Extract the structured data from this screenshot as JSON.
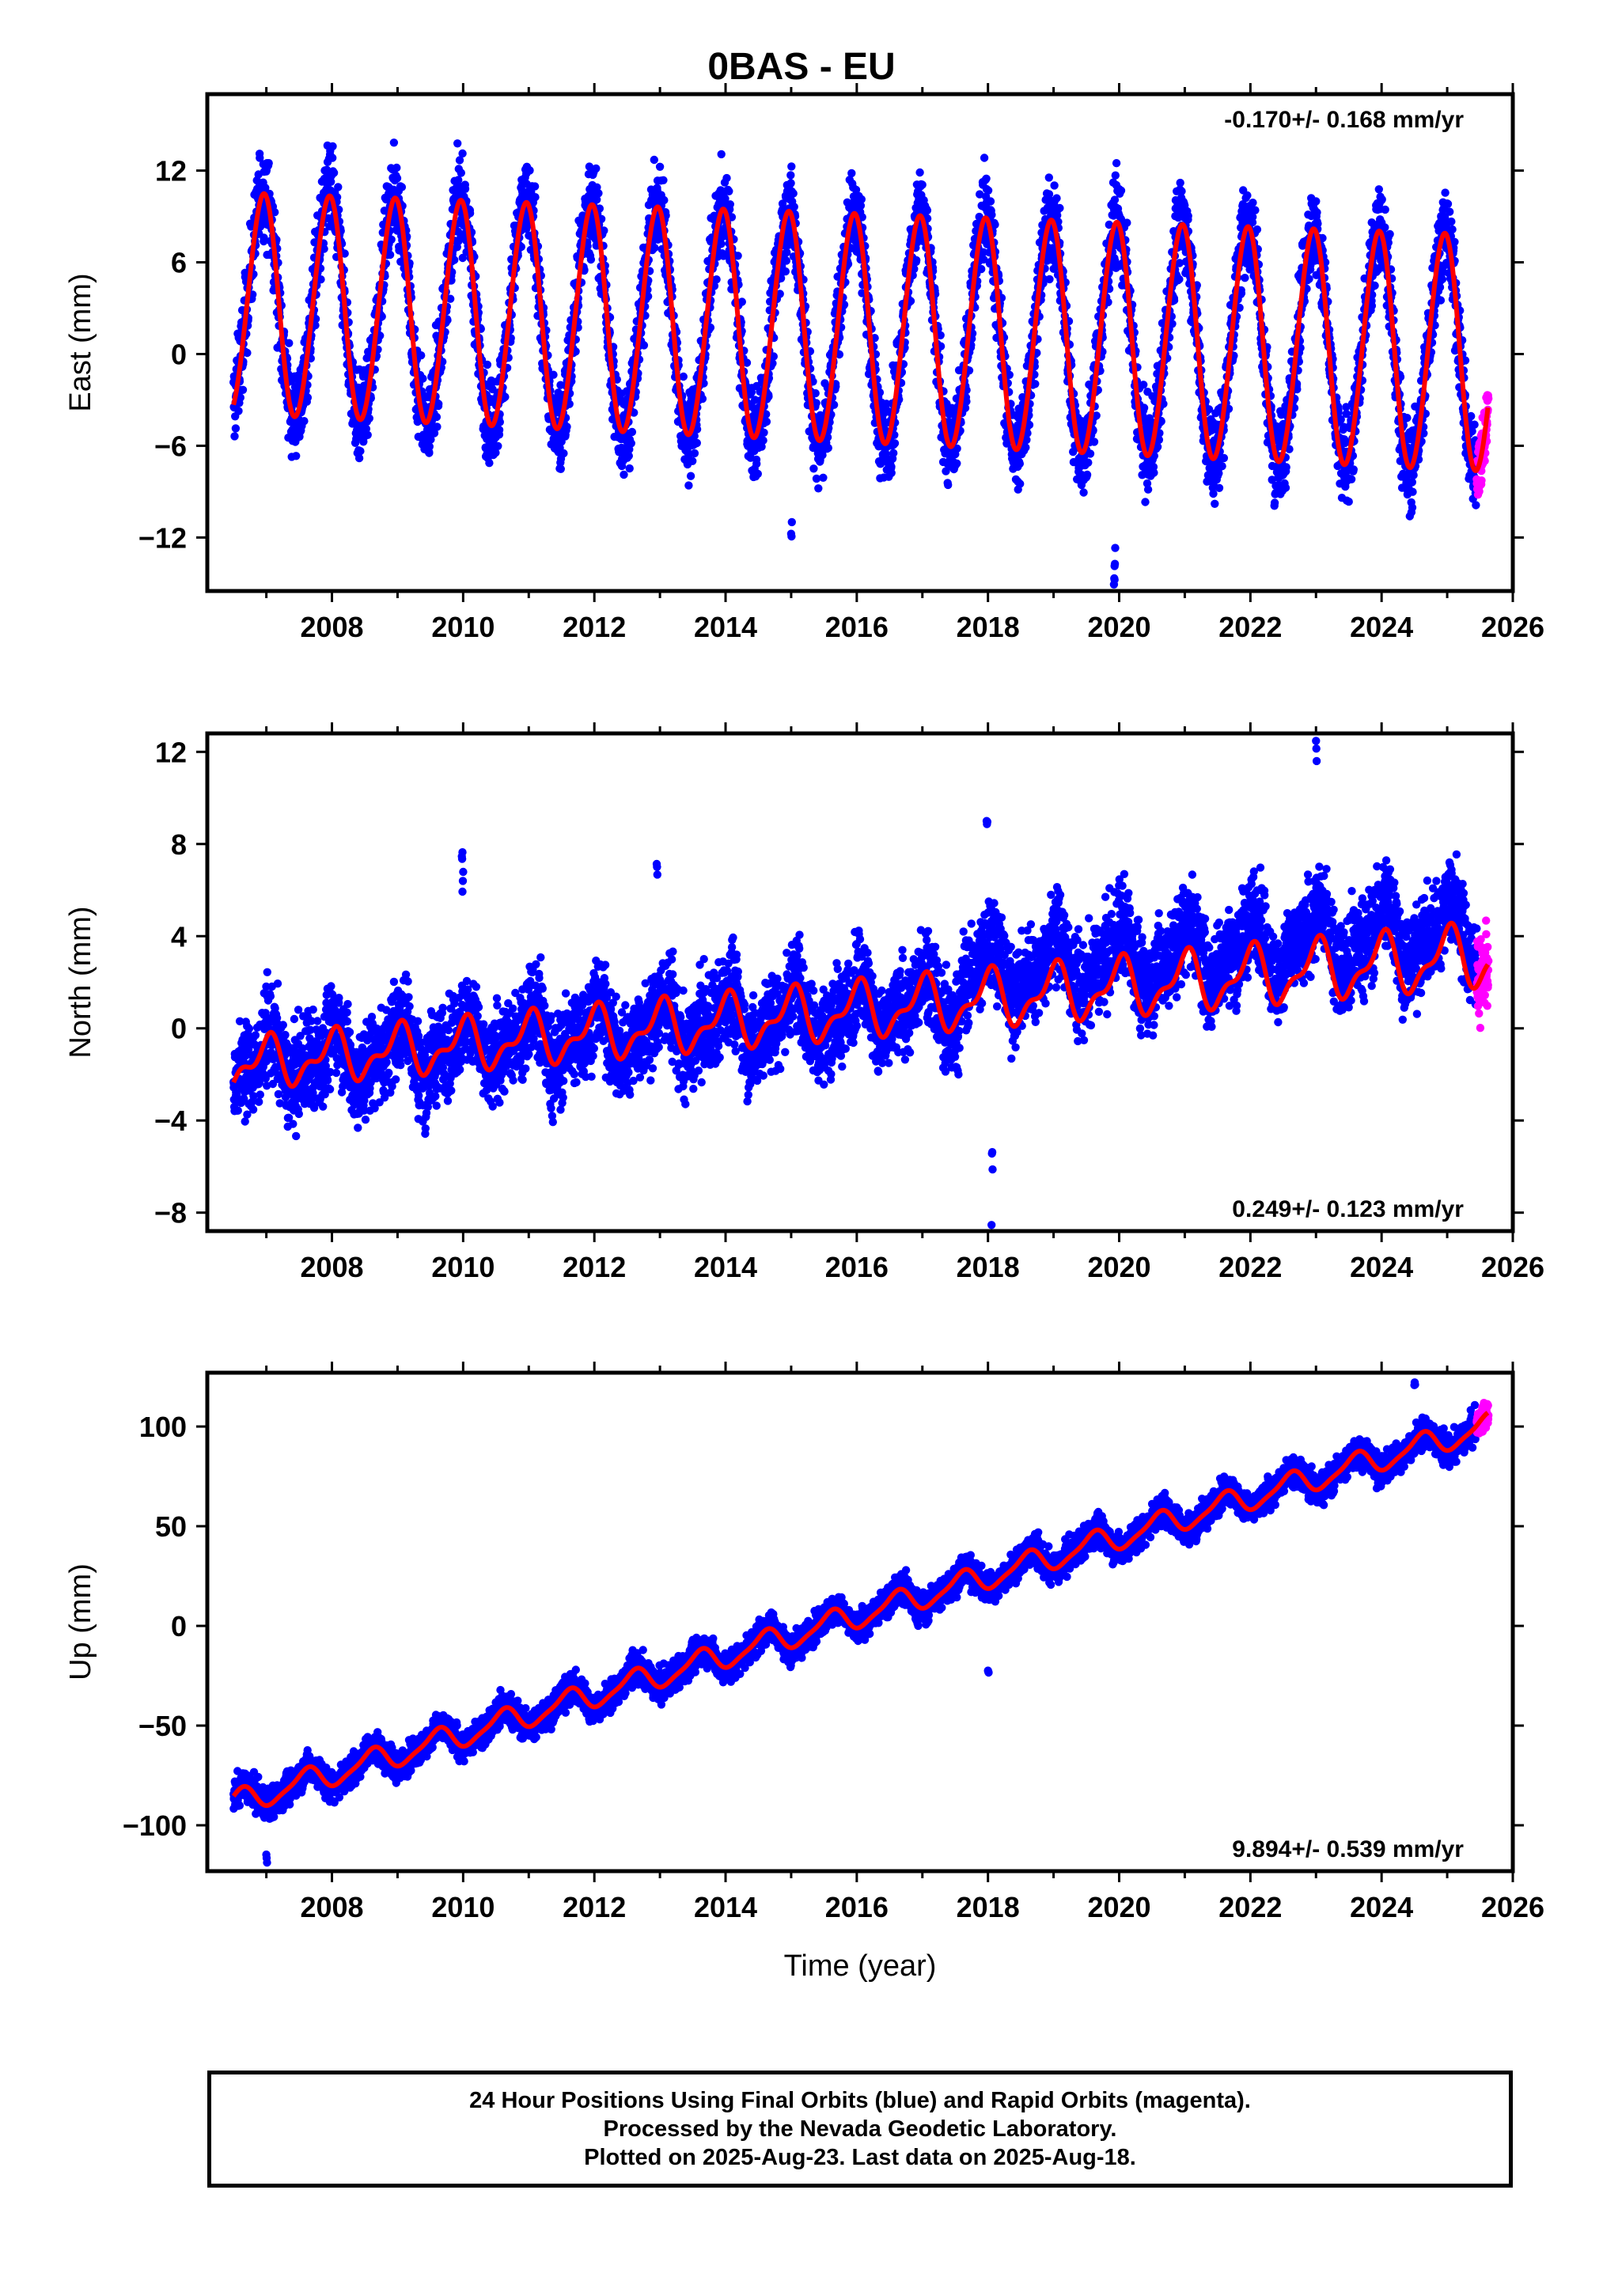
{
  "chart_data": {
    "type": "scatter",
    "title": "0BAS - EU",
    "xlabel": "Time (year)",
    "x_ticks": [
      "2008",
      "2010",
      "2012",
      "2014",
      "2016",
      "2018",
      "2020",
      "2022",
      "2024",
      "2026"
    ],
    "xlim": [
      2006.1,
      2026.0
    ],
    "colors": {
      "final": "#0000ff",
      "rapid": "#ff00ff",
      "model": "#ff0000"
    },
    "panels": [
      {
        "name": "east",
        "ylabel": "East (mm)",
        "ylim": [
          -15.5,
          17.0
        ],
        "y_ticks": [
          12,
          6,
          0,
          -6,
          -12
        ],
        "y_tick_labels": [
          "12",
          "6",
          "0",
          "−6",
          "−12"
        ],
        "rate_label": "-0.170+/- 0.168 mm/yr",
        "rate_position": "top-right",
        "velocity": -0.17,
        "offset_at_2006_5": 3.2,
        "annual_amplitude": [
          7.2,
          7.7
        ],
        "annual_peak_phase": 0.95,
        "semiannual_amplitude": 0.4,
        "scatter_sd": 1.4,
        "spikes": [
          [
            2019.92,
            -15.0
          ],
          [
            2019.93,
            -13.5
          ],
          [
            2015.0,
            -11.2
          ]
        ]
      },
      {
        "name": "north",
        "ylabel": "North (mm)",
        "ylim": [
          -8.8,
          12.8
        ],
        "y_ticks": [
          12,
          8,
          4,
          0,
          -4,
          -8
        ],
        "y_tick_labels": [
          "12",
          "8",
          "4",
          "0",
          "−4",
          "−8"
        ],
        "rate_label": "0.249+/- 0.123 mm/yr",
        "rate_position": "bottom-right",
        "velocity": 0.249,
        "offset_at_2006_5": -1.6,
        "annual_amplitude": [
          0.9,
          1.2
        ],
        "annual_peak_phase": 0.0,
        "semiannual_amplitude": 0.5,
        "scatter_sd": 1.0,
        "spikes": [
          [
            2009.98,
            7.9
          ],
          [
            2009.99,
            6.5
          ],
          [
            2012.95,
            6.8
          ],
          [
            2018.05,
            -8.5
          ],
          [
            2018.06,
            -6.0
          ],
          [
            2017.98,
            9.2
          ],
          [
            2023.0,
            12.2
          ]
        ]
      },
      {
        "name": "up",
        "ylabel": "Up (mm)",
        "ylim": [
          -123,
          127
        ],
        "y_ticks": [
          100,
          50,
          0,
          -50,
          -100
        ],
        "y_tick_labels": [
          "100",
          "50",
          "0",
          "−50",
          "−100"
        ],
        "rate_label": "9.894+/- 0.539 mm/yr",
        "rate_position": "bottom-right",
        "velocity": 9.894,
        "offset_at_2006_5": -89,
        "annual_amplitude": [
          6,
          6
        ],
        "annual_peak_phase": 0.6,
        "semiannual_amplitude": 1.5,
        "scatter_sd": 3.8,
        "spikes": [
          [
            2007.0,
            -116
          ],
          [
            2018.0,
            -23
          ],
          [
            2024.5,
            121
          ]
        ]
      }
    ],
    "series": [
      {
        "name": "Final Orbits (blue)",
        "kind": "daily positions",
        "x_range": [
          2006.5,
          2025.45
        ]
      },
      {
        "name": "Rapid Orbits (magenta)",
        "kind": "daily positions",
        "x_range": [
          2025.45,
          2025.63
        ]
      },
      {
        "name": "Model fit",
        "kind": "trend + seasonal curve"
      }
    ]
  },
  "footer": {
    "line1": "24 Hour Positions Using Final Orbits (blue) and Rapid Orbits (magenta).",
    "line2": "Processed by the Nevada Geodetic Laboratory.",
    "line3": "Plotted on 2025-Aug-23. Last data on 2025-Aug-18."
  }
}
